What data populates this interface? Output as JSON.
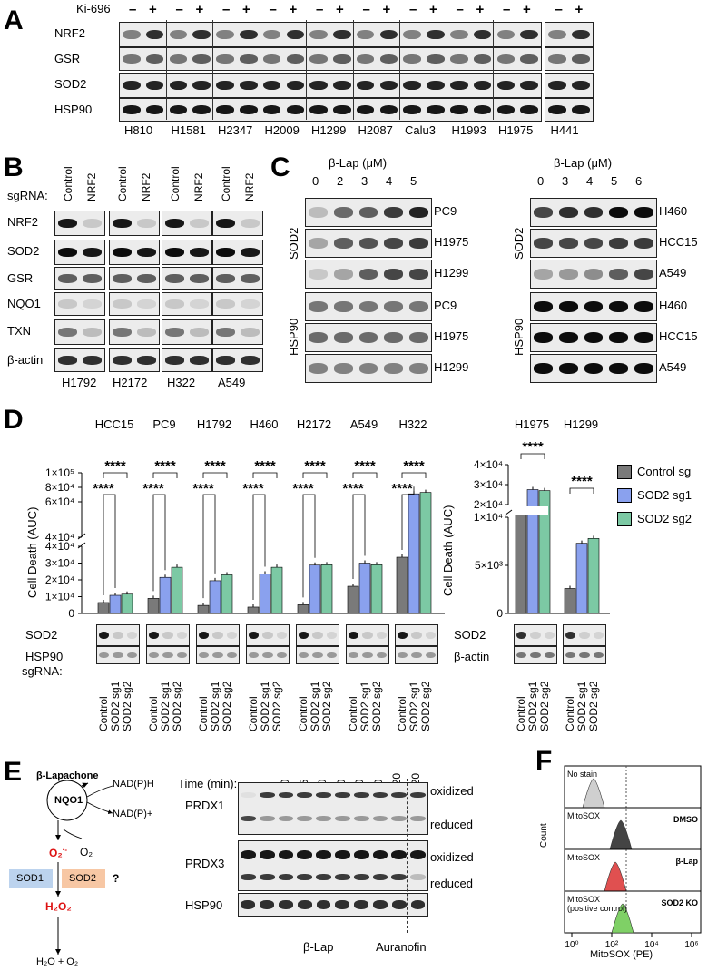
{
  "panelA": {
    "letter": "A",
    "treatment": "Ki-696",
    "signs": [
      "–",
      "+"
    ],
    "rows": [
      "NRF2",
      "GSR",
      "SOD2",
      "HSP90"
    ],
    "lines": [
      "H810",
      "H1581",
      "H2347",
      "H2009",
      "H1299",
      "H2087",
      "Calu3",
      "H1993",
      "H1975",
      "H441"
    ]
  },
  "panelB": {
    "letter": "B",
    "lanes": [
      "Control",
      "NRF2",
      "Control",
      "NRF2",
      "Control",
      "NRF2",
      "Control",
      "NRF2"
    ],
    "sgrna": "sgRNA:",
    "rows": [
      "NRF2",
      "SOD2",
      "GSR",
      "NQO1",
      "TXN",
      "β-actin"
    ],
    "lines": [
      "H1792",
      "H2172",
      "H322",
      "A549"
    ]
  },
  "panelC": {
    "letter": "C",
    "left": {
      "title": "β-Lap (μM)",
      "doses": [
        "0",
        "2",
        "3",
        "4",
        "5"
      ],
      "groups": [
        "SOD2",
        "HSP90"
      ],
      "lines": [
        "PC9",
        "H1975",
        "H1299",
        "PC9",
        "H1975",
        "H1299"
      ]
    },
    "right": {
      "title": "β-Lap (μM)",
      "doses": [
        "0",
        "3",
        "4",
        "5",
        "6"
      ],
      "groups": [
        "SOD2",
        "HSP90"
      ],
      "lines": [
        "H460",
        "HCC15",
        "A549",
        "H460",
        "HCC15",
        "A549"
      ]
    }
  },
  "panelD": {
    "letter": "D",
    "stars": "****",
    "sgrna": "sgRNA:",
    "blot_rows_left": [
      "SOD2",
      "HSP90"
    ],
    "blot_rows_right": [
      "SOD2",
      "β-actin"
    ],
    "lane_labels": [
      "Control",
      "SOD2 sg1",
      "SOD2 sg2"
    ],
    "legend": [
      "Control sg",
      "SOD2 sg1",
      "SOD2 sg2"
    ],
    "colors": {
      "control": "#7a7a7a",
      "sg1": "#8aa1ee",
      "sg2": "#7cc9a4"
    },
    "left_chart": {
      "ylabel": "Cell Death (AUC)",
      "ticks_low": [
        "0",
        "1×10⁴",
        "2×10⁴",
        "3×10⁴",
        "4×10⁴"
      ],
      "ticks_high": [
        "4×10⁴",
        "6×10⁴",
        "8×10⁴",
        "1×10⁵"
      ],
      "lines": [
        "HCC15",
        "PC9",
        "H1792",
        "H460",
        "H2172",
        "A549",
        "H322"
      ]
    },
    "right_chart": {
      "ylabel": "Cell Death (AUC)",
      "ticks_low": [
        "0",
        "5×10³",
        "1×10⁴"
      ],
      "ticks_high": [
        "2×10⁴",
        "3×10⁴",
        "4×10⁴"
      ],
      "lines": [
        "H1975",
        "H1299"
      ]
    }
  },
  "chart_data": [
    {
      "type": "bar",
      "title": "",
      "ylabel": "Cell Death (AUC)",
      "categories": [
        "HCC15",
        "PC9",
        "H1792",
        "H460",
        "H2172",
        "A549",
        "H322"
      ],
      "series": [
        {
          "name": "Control sg",
          "values": [
            6500,
            9000,
            4800,
            3800,
            5200,
            16200,
            33500
          ]
        },
        {
          "name": "SOD2 sg1",
          "values": [
            10800,
            21500,
            19500,
            23500,
            28800,
            30000,
            71000
          ]
        },
        {
          "name": "SOD2 sg2",
          "values": [
            11500,
            27500,
            23000,
            27500,
            29000,
            29000,
            73000
          ]
        }
      ],
      "ylim": [
        0,
        100000
      ],
      "axis_break": [
        40000,
        40000
      ]
    },
    {
      "type": "bar",
      "title": "",
      "ylabel": "Cell Death (AUC)",
      "categories": [
        "H1975",
        "H1299"
      ],
      "series": [
        {
          "name": "Control sg",
          "values": [
            17500,
            2600
          ]
        },
        {
          "name": "SOD2 sg1",
          "values": [
            27500,
            7300
          ]
        },
        {
          "name": "SOD2 sg2",
          "values": [
            27000,
            7800
          ]
        }
      ],
      "ylim": [
        0,
        40000
      ],
      "axis_break": [
        10000,
        20000
      ]
    }
  ],
  "panelE": {
    "letter": "E",
    "compound": "β-Lapachone",
    "enzyme": "NQO1",
    "nadph": "NAD(P)H",
    "nadp": "NAD(P)+",
    "superoxide": "O₂",
    "superoxide_charge": "·-",
    "oxygen": "O₂",
    "sod1": "SOD1",
    "sod2": "SOD2",
    "question": "?",
    "h2o2": "H₂O₂",
    "products": "H₂O + O₂",
    "time_label": "Time (min):",
    "times": [
      "0",
      "5",
      "10",
      "15",
      "20",
      "40",
      "60",
      "90",
      "120",
      "120"
    ],
    "rows": [
      "PRDX1",
      "PRDX3",
      "HSP90"
    ],
    "states": [
      "oxidized",
      "reduced",
      "oxidized",
      "reduced"
    ],
    "treat1": "β-Lap",
    "treat2": "Auranofin"
  },
  "panelF": {
    "letter": "F",
    "ylabel": "Count",
    "xlabel": "MitoSOX (PE)",
    "xticks": [
      "10⁰",
      "10²",
      "10⁴",
      "10⁶"
    ],
    "rows": [
      {
        "left": "No stain",
        "right": "",
        "color": "#cfcfcf"
      },
      {
        "left": "MitoSOX",
        "right": "DMSO",
        "color": "#444444"
      },
      {
        "left": "MitoSOX",
        "right": "β-Lap",
        "color": "#e05050"
      },
      {
        "left": "MitoSOX\n(positive control)",
        "right": "SOD2 KO",
        "color": "#7fd066"
      }
    ]
  }
}
